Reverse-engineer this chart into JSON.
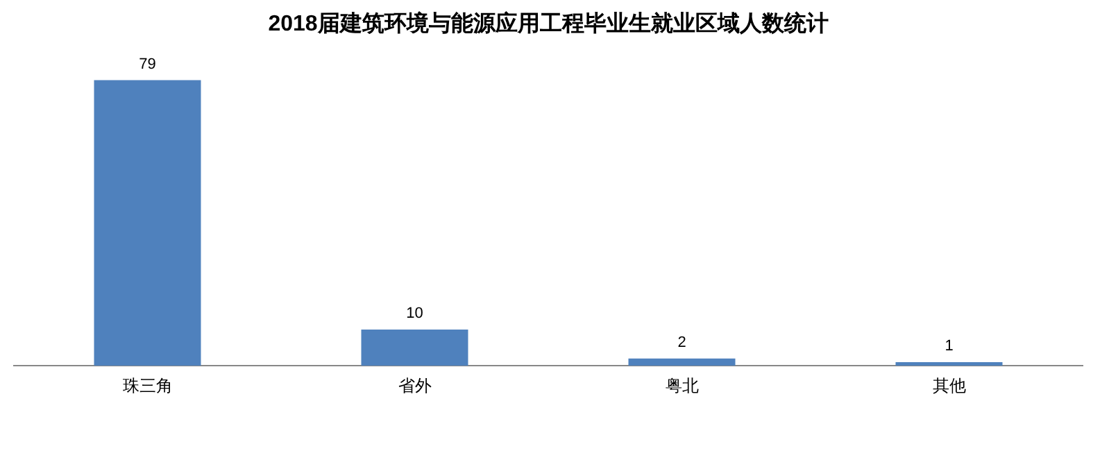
{
  "chart_data": {
    "type": "bar",
    "title": "2018届建筑环境与能源应用工程毕业生就业区域人数统计",
    "categories": [
      "珠三角",
      "省外",
      "粤北",
      "其他"
    ],
    "values": [
      79,
      10,
      2,
      1
    ],
    "color": "#4f81bd",
    "data_labels": true,
    "grid": false,
    "legend": false
  }
}
